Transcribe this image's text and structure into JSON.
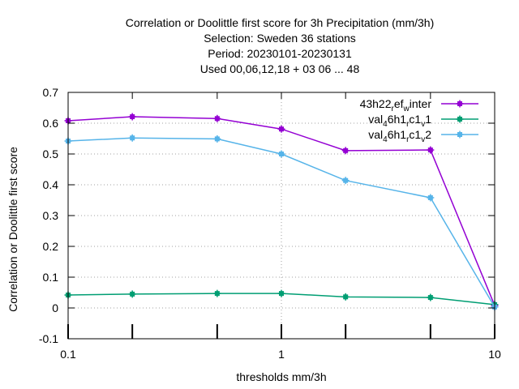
{
  "chart_data": {
    "type": "line",
    "title_lines": [
      "Correlation or Doolittle first score  for 3h Precipitation (mm/3h)",
      "Selection: Sweden     36 stations",
      "Period: 20230101-20230131",
      "Used  00,06,12,18  + 03 06 ... 48"
    ],
    "xlabel": "thresholds mm/3h",
    "ylabel": "Correlation or Doolittle first score",
    "x_scale": "log",
    "xlim": [
      0.1,
      10
    ],
    "ylim": [
      -0.1,
      0.7
    ],
    "x_ticks": [
      0.1,
      1,
      10
    ],
    "x_tick_labels": [
      "0.1",
      "1",
      "10"
    ],
    "x_minor_ticks": [
      0.2,
      0.5,
      2,
      5
    ],
    "y_ticks": [
      -0.1,
      0,
      0.1,
      0.2,
      0.3,
      0.4,
      0.5,
      0.6,
      0.7
    ],
    "y_tick_labels": [
      "-0.1",
      "0",
      "0.1",
      "0.2",
      "0.3",
      "0.4",
      "0.5",
      "0.6",
      "0.7"
    ],
    "grid": true,
    "legend_position": "top-right",
    "x": [
      0.1,
      0.2,
      0.5,
      1,
      2,
      5,
      10
    ],
    "series": [
      {
        "legend": {
          "parts": [
            {
              "t": "43h22",
              "sub": false
            },
            {
              "t": "r",
              "sub": true
            },
            {
              "t": "ef",
              "sub": false
            },
            {
              "t": "w",
              "sub": true
            },
            {
              "t": "inter",
              "sub": false
            }
          ]
        },
        "color": "#9400d3",
        "values": [
          0.608,
          0.621,
          0.615,
          0.581,
          0.511,
          0.513,
          0.008
        ]
      },
      {
        "legend": {
          "parts": [
            {
              "t": "val",
              "sub": false
            },
            {
              "t": "4",
              "sub": true
            },
            {
              "t": "6h1",
              "sub": false
            },
            {
              "t": "r",
              "sub": true
            },
            {
              "t": "c1",
              "sub": false
            },
            {
              "t": "v",
              "sub": true
            },
            {
              "t": "1",
              "sub": false
            }
          ]
        },
        "color": "#009e73",
        "values": [
          0.042,
          0.045,
          0.047,
          0.047,
          0.036,
          0.034,
          0.011
        ]
      },
      {
        "legend": {
          "parts": [
            {
              "t": "val",
              "sub": false
            },
            {
              "t": "4",
              "sub": true
            },
            {
              "t": "6h1",
              "sub": false
            },
            {
              "t": "r",
              "sub": true
            },
            {
              "t": "c1",
              "sub": false
            },
            {
              "t": "v",
              "sub": true
            },
            {
              "t": "2",
              "sub": false
            }
          ]
        },
        "color": "#56b4e9",
        "values": [
          0.542,
          0.552,
          0.549,
          0.5,
          0.414,
          0.358,
          0.003
        ]
      }
    ]
  }
}
